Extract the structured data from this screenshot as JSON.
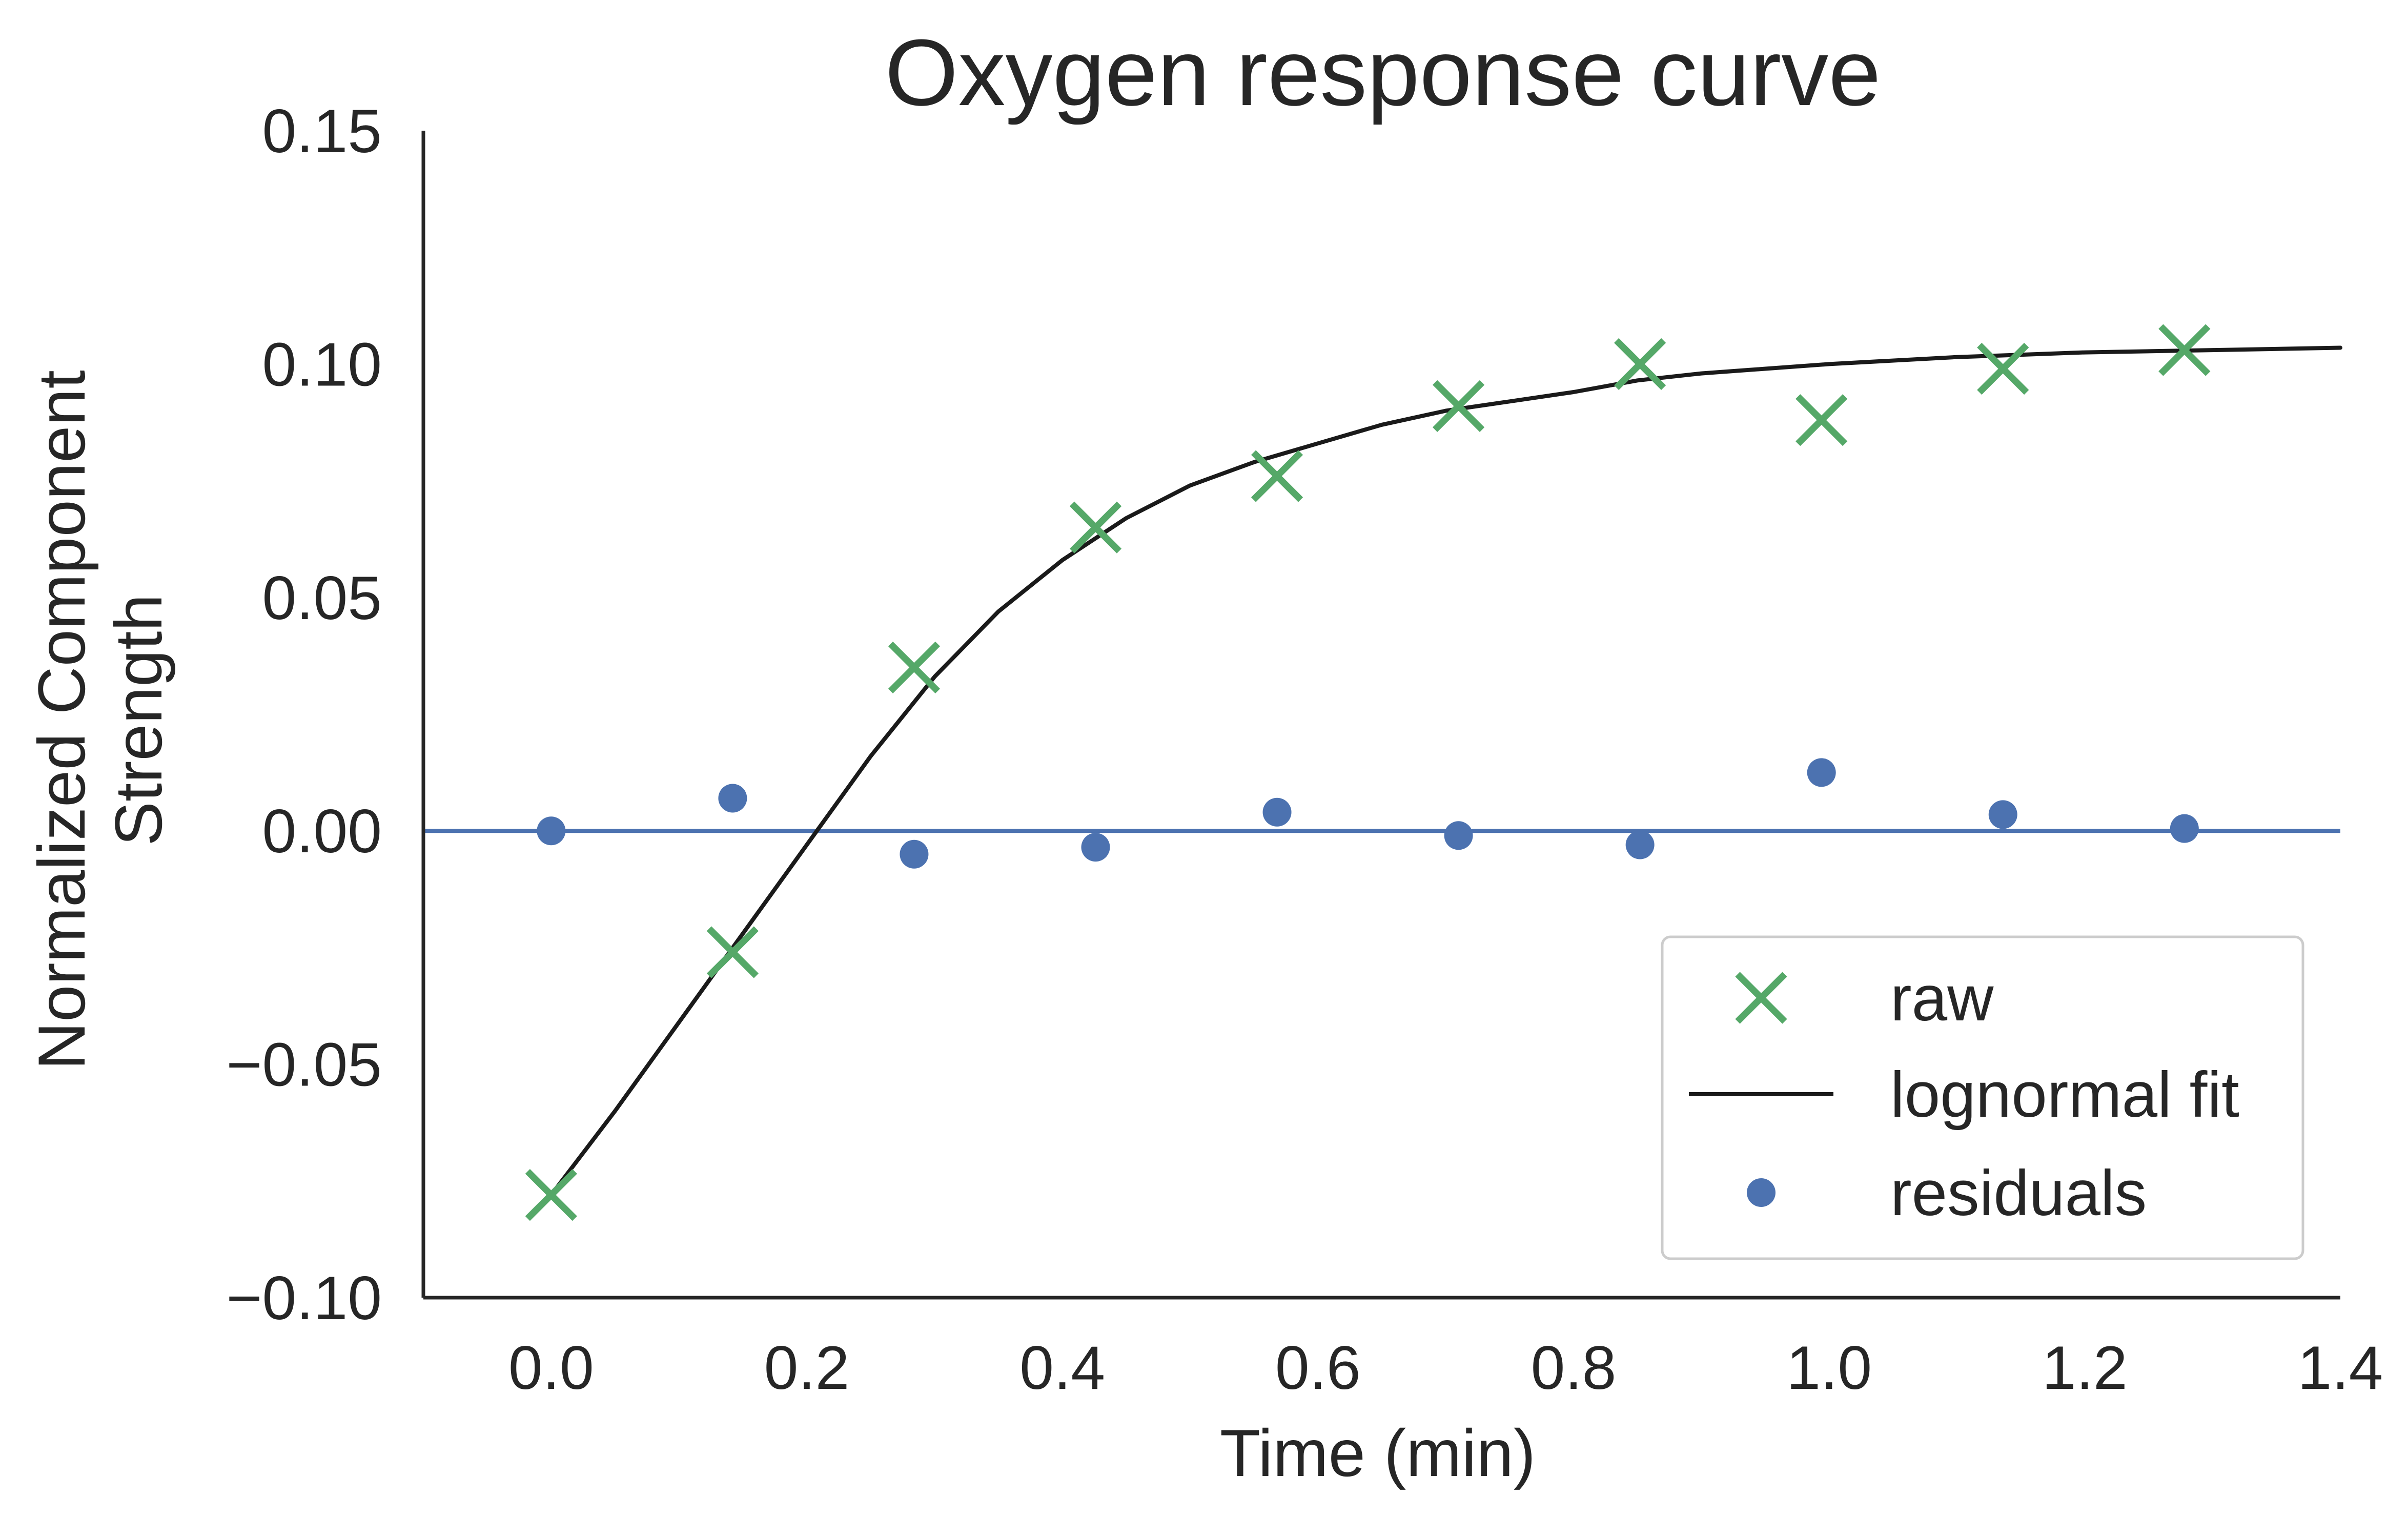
{
  "chart_data": {
    "type": "scatter",
    "title": "Oxygen response curve",
    "xlabel": "Time (min)",
    "ylabel": "Normalized Component Strength",
    "ylabel_lines": [
      "Normalized Component",
      "Strength"
    ],
    "xlim": [
      -0.1,
      1.4
    ],
    "ylim": [
      -0.1,
      0.15
    ],
    "xticks": [
      0.0,
      0.2,
      0.4,
      0.6,
      0.8,
      1.0,
      1.2,
      1.4
    ],
    "xtick_labels": [
      "0.0",
      "0.2",
      "0.4",
      "0.6",
      "0.8",
      "1.0",
      "1.2",
      "1.4"
    ],
    "yticks": [
      -0.1,
      -0.05,
      0.0,
      0.05,
      0.1,
      0.15
    ],
    "ytick_labels": [
      "−0.10",
      "−0.05",
      "0.00",
      "0.05",
      "0.10",
      "0.15"
    ],
    "grid": false,
    "legend_position": "lower-right",
    "baseline": {
      "y": 0.0,
      "color": "#4c72b0"
    },
    "series": [
      {
        "name": "raw",
        "kind": "scatter",
        "marker": "x",
        "color": "#55a868",
        "x": [
          0.0,
          0.142,
          0.284,
          0.426,
          0.568,
          0.71,
          0.852,
          0.994,
          1.136,
          1.278
        ],
        "y": [
          -0.078,
          -0.026,
          0.035,
          0.065,
          0.076,
          0.091,
          0.1,
          0.088,
          0.099,
          0.103
        ]
      },
      {
        "name": "lognormal fit",
        "kind": "line",
        "color": "#1a1a1a",
        "x": [
          0.0,
          0.05,
          0.1,
          0.15,
          0.2,
          0.25,
          0.3,
          0.35,
          0.4,
          0.45,
          0.5,
          0.55,
          0.6,
          0.65,
          0.7,
          0.75,
          0.8,
          0.85,
          0.9,
          0.95,
          1.0,
          1.1,
          1.2,
          1.3,
          1.4
        ],
        "y": [
          -0.078,
          -0.06,
          -0.041,
          -0.022,
          -0.003,
          0.016,
          0.033,
          0.047,
          0.058,
          0.067,
          0.074,
          0.079,
          0.083,
          0.087,
          0.09,
          0.092,
          0.094,
          0.0965,
          0.098,
          0.099,
          0.1,
          0.1015,
          0.1025,
          0.103,
          0.1035
        ]
      },
      {
        "name": "residuals",
        "kind": "scatter",
        "marker": "o",
        "color": "#4c72b0",
        "x": [
          0.0,
          0.142,
          0.284,
          0.426,
          0.568,
          0.71,
          0.852,
          0.994,
          1.136,
          1.278
        ],
        "y": [
          0.0,
          0.007,
          -0.005,
          -0.0035,
          0.004,
          -0.001,
          -0.003,
          0.0125,
          0.0035,
          0.0005
        ]
      }
    ]
  }
}
